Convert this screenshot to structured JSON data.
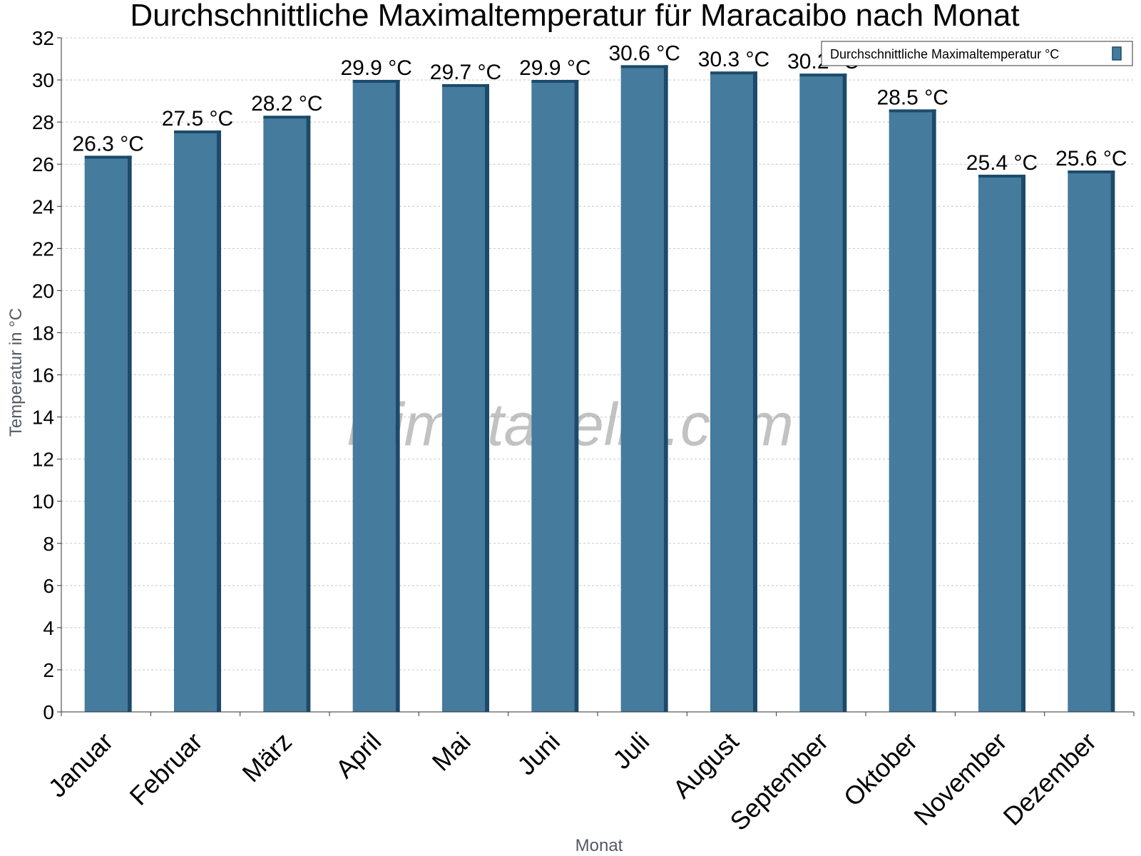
{
  "chart_data": {
    "type": "bar",
    "title": "Durchschnittliche Maximaltemperatur für Maracaibo nach Monat",
    "xlabel": "Monat",
    "ylabel": "Temperatur in °C",
    "ylim": [
      0,
      32
    ],
    "ytick_step": 2,
    "grid": true,
    "legend_position": "top-right",
    "categories": [
      "Januar",
      "Februar",
      "März",
      "April",
      "Mai",
      "Juni",
      "Juli",
      "August",
      "September",
      "Oktober",
      "November",
      "Dezember"
    ],
    "series": [
      {
        "name": "Durchschnittliche Maximaltemperatur °C",
        "values": [
          26.3,
          27.5,
          28.2,
          29.9,
          29.7,
          29.9,
          30.6,
          30.3,
          30.2,
          28.5,
          25.4,
          25.6
        ],
        "labels": [
          "26.3 °C",
          "27.5 °C",
          "28.2 °C",
          "29.9 °C",
          "29.7 °C",
          "29.9 °C",
          "30.6 °C",
          "30.3 °C",
          "30.2 °C",
          "28.5 °C",
          "25.4 °C",
          "25.6 °C"
        ],
        "color": "#457b9d",
        "shade_color": "#1b4a6b"
      }
    ],
    "watermark": "klimatabelle.com"
  }
}
